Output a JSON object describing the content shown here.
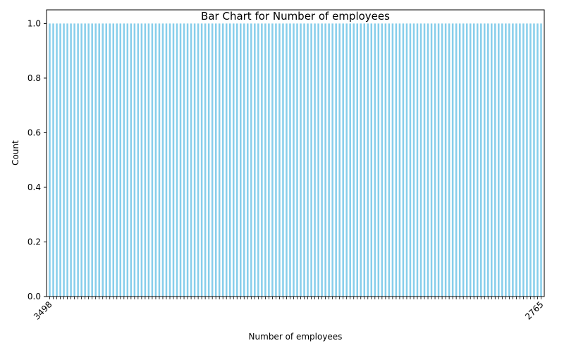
{
  "chart_data": {
    "type": "bar",
    "title": "Bar Chart for Number of employees",
    "xlabel": "Number of employees",
    "ylabel": "Count",
    "bar_color": "#87ceeb",
    "ylim": [
      0,
      1.05
    ],
    "y_ticks": [
      "0.0",
      "0.2",
      "0.4",
      "0.6",
      "0.8",
      "1.0"
    ],
    "bar_count_estimate": 140,
    "bar_value": 1.0,
    "legible_categories": {
      "first": "3498",
      "last": "2765"
    },
    "x_tick_rotation": "45deg",
    "grid": false,
    "legend": "none"
  }
}
